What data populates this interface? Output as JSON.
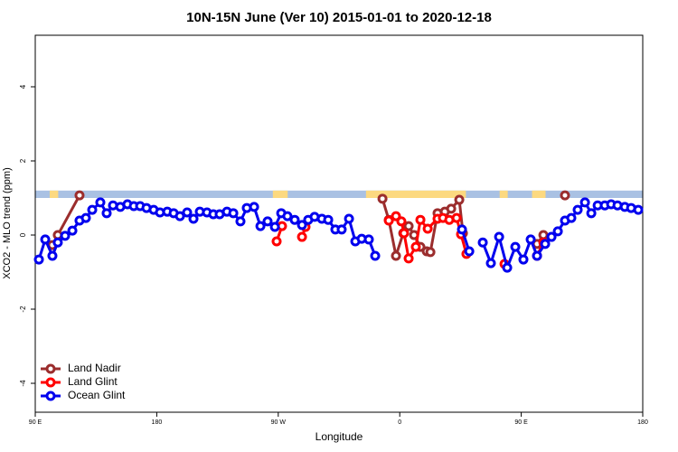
{
  "chart_data": {
    "type": "line",
    "title": "10N-15N June (Ver 10)   2015-01-01 to 2020-12-18",
    "x_label": "Longitude",
    "y_label": "XCO2 - MLO trend (ppm)",
    "xlim": [
      90,
      540
    ],
    "ylim": [
      -4.78,
      5.39
    ],
    "xticks": [
      {
        "value": 90,
        "label": "90 E"
      },
      180,
      {
        "value": 270,
        "label": "90 W"
      },
      {
        "value": 360,
        "label": "0"
      },
      {
        "value": 450,
        "label": "90 E"
      },
      {
        "value": 540,
        "label": "180"
      }
    ],
    "yticks": [
      -4,
      -2,
      0,
      2,
      4
    ],
    "legend": "bottom-left",
    "band": {
      "ylim": [
        1.0,
        1.2
      ],
      "color": "#a9c1e3",
      "land_color": "#fcd980",
      "land_ranges": [
        [
          100.7,
          107
        ],
        [
          266,
          277
        ],
        [
          335,
          409
        ],
        [
          434,
          440
        ],
        [
          458,
          468
        ]
      ]
    },
    "series": [
      {
        "name": "Land Nadir",
        "color": "#9b2d2d",
        "x": [
          102.7,
          106.7,
          122.8,
          null,
          347.2,
          351.9,
          357.2,
          362.6,
          366.6,
          370.6,
          375.3,
          380.0,
          382.7,
          388.0,
          393.4,
          398.1,
          404.1,
          406.8,
          null,
          461.7,
          466.4,
          null,
          482.4
        ],
        "values": [
          -0.27,
          0,
          1.07,
          null,
          0.98,
          0.41,
          -0.56,
          0.05,
          0.24,
          0,
          -0.32,
          -0.44,
          -0.46,
          0.59,
          0.63,
          0.71,
          0.95,
          0.05,
          null,
          -0.24,
          0,
          null,
          1.07
        ]
      },
      {
        "name": "Land Glint",
        "color": "#ff0000",
        "x": [
          268.8,
          272.8,
          null,
          287.6,
          290.2,
          null,
          351.9,
          357.2,
          361.2,
          363.2,
          366.6,
          371.9,
          375.3,
          380.7,
          388.0,
          392.0,
          396.7,
          402.1,
          405.4,
          409.4,
          null,
          437.6,
          null,
          461.7,
          466.4
        ],
        "values": [
          -0.17,
          0.24,
          null,
          -0.05,
          0.22,
          null,
          0.39,
          0.51,
          0.37,
          0.05,
          -0.63,
          -0.32,
          0.41,
          0.17,
          0.44,
          0.46,
          0.41,
          0.46,
          0.02,
          -0.51,
          null,
          -0.78,
          null,
          -0.56,
          -0.2
        ]
      },
      {
        "name": "Ocean Glint",
        "color": "#0000ee",
        "x": [
          92.7,
          97.4,
          102.7,
          106.7,
          112.1,
          117.5,
          122.8,
          127.5,
          132.2,
          138.2,
          142.9,
          147.6,
          153.0,
          158.3,
          163.0,
          167.7,
          172.4,
          177.7,
          182.4,
          187.8,
          192.5,
          197.2,
          202.5,
          207.2,
          211.9,
          217.2,
          221.9,
          226.6,
          232.0,
          236.7,
          242.0,
          246.7,
          252.1,
          256.8,
          262.1,
          267.5,
          272.2,
          276.8,
          282.2,
          287.6,
          292.2,
          296.9,
          302.3,
          307.0,
          312.3,
          317.0,
          322.4,
          327.1,
          331.8,
          337.1,
          341.8,
          null,
          406.1,
          411.5,
          null,
          421.5,
          427.5,
          433.6,
          439.6,
          445.6,
          451.6,
          457.0,
          461.7,
          467.7,
          472.4,
          477.1,
          482.4,
          487.1,
          491.8,
          497.2,
          501.9,
          506.6,
          511.9,
          516.6,
          521.3,
          526.7,
          531.4,
          536.7
        ],
        "values": [
          -0.66,
          -0.12,
          -0.56,
          -0.2,
          -0.02,
          0.12,
          0.39,
          0.46,
          0.68,
          0.88,
          0.59,
          0.8,
          0.76,
          0.83,
          0.78,
          0.78,
          0.73,
          0.68,
          0.61,
          0.63,
          0.59,
          0.51,
          0.61,
          0.44,
          0.63,
          0.61,
          0.56,
          0.56,
          0.63,
          0.59,
          0.37,
          0.73,
          0.76,
          0.24,
          0.37,
          0.22,
          0.59,
          0.51,
          0.41,
          0.27,
          0.41,
          0.49,
          0.44,
          0.41,
          0.15,
          0.15,
          0.44,
          -0.17,
          -0.1,
          -0.12,
          -0.56,
          null,
          0.15,
          -0.44,
          null,
          -0.2,
          -0.76,
          -0.05,
          -0.88,
          -0.32,
          -0.66,
          -0.12,
          -0.56,
          -0.24,
          -0.05,
          0.1,
          0.39,
          0.46,
          0.68,
          0.88,
          0.59,
          0.8,
          0.8,
          0.83,
          0.8,
          0.76,
          0.73,
          0.68
        ]
      }
    ]
  }
}
